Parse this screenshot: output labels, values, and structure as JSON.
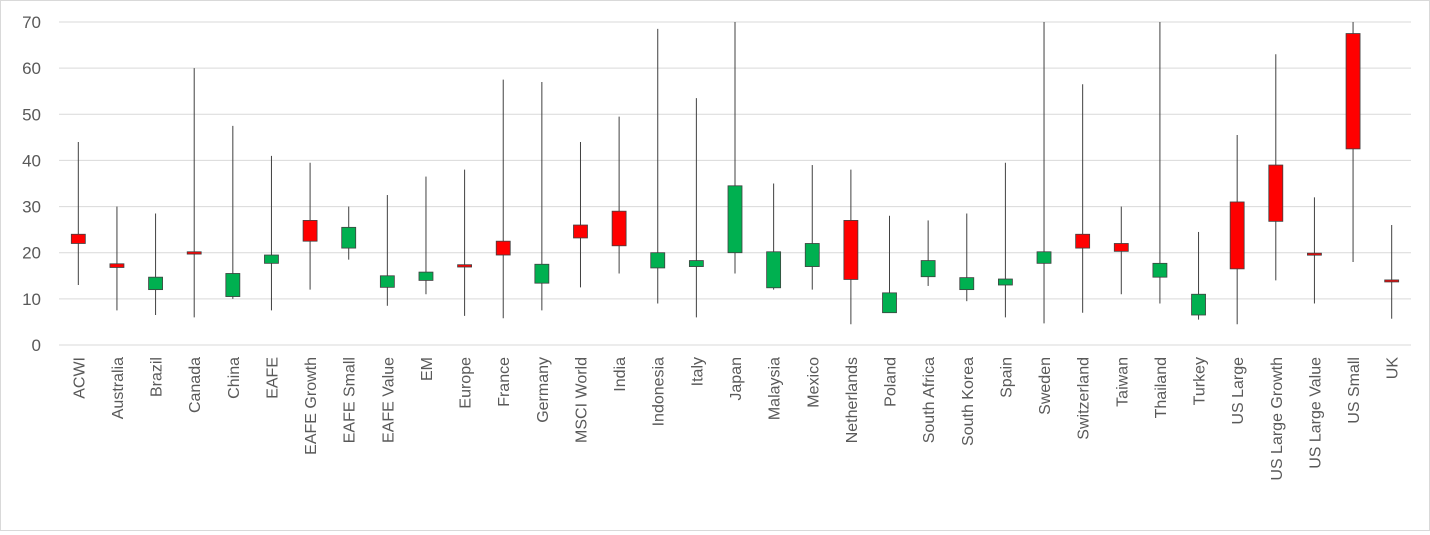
{
  "chart_data": {
    "type": "candlestick",
    "title": "",
    "xlabel": "",
    "ylabel": "",
    "ylim": [
      0,
      70
    ],
    "yticks": [
      0,
      10,
      20,
      30,
      40,
      50,
      60,
      70
    ],
    "grid": true,
    "legend": "none",
    "colors": {
      "up": "#00b050",
      "down": "#ff0000",
      "wick": "#404040",
      "grid": "#d9d9d9",
      "text": "#595959"
    },
    "categories": [
      "ACWI",
      "Australia",
      "Brazil",
      "Canada",
      "China",
      "EAFE",
      "EAFE Growth",
      "EAFE Small",
      "EAFE Value",
      "EM",
      "Europe",
      "France",
      "Germany",
      "MSCI World",
      "India",
      "Indonesia",
      "Italy",
      "Japan",
      "Malaysia",
      "Mexico",
      "Netherlands",
      "Poland",
      "South Africa",
      "South Korea",
      "Spain",
      "Sweden",
      "Switzerland",
      "Taiwan",
      "Thailand",
      "Turkey",
      "US Large",
      "US Large Growth",
      "US Large Value",
      "US Small",
      "UK"
    ],
    "open": [
      24.0,
      17.6,
      12.0,
      20.2,
      10.5,
      17.7,
      27.0,
      21.0,
      12.5,
      14.0,
      17.4,
      22.5,
      13.4,
      26.0,
      29.0,
      16.7,
      17.0,
      20.0,
      12.4,
      17.0,
      27.0,
      7.0,
      14.8,
      12.0,
      13.0,
      17.7,
      24.0,
      22.0,
      14.7,
      6.5,
      31.0,
      39.0,
      19.9,
      67.5,
      14.1
    ],
    "close": [
      22.0,
      16.8,
      14.7,
      19.7,
      15.5,
      19.5,
      22.5,
      25.5,
      15.0,
      15.8,
      16.9,
      19.5,
      17.5,
      23.2,
      21.5,
      20.0,
      18.3,
      34.5,
      20.2,
      22.0,
      14.2,
      11.3,
      18.3,
      14.6,
      14.3,
      20.2,
      21.0,
      20.3,
      17.7,
      11.0,
      16.5,
      26.8,
      19.5,
      42.5,
      13.8
    ],
    "high": [
      44.0,
      30.0,
      28.5,
      60.0,
      47.5,
      41.0,
      39.5,
      30.0,
      32.5,
      36.5,
      38.0,
      57.5,
      57.0,
      44.0,
      49.5,
      68.5,
      53.5,
      70.0,
      35.0,
      39.0,
      38.0,
      28.0,
      27.0,
      28.5,
      39.5,
      70.0,
      56.5,
      30.0,
      70.0,
      24.5,
      45.5,
      63.0,
      32.0,
      70.0,
      26.0
    ],
    "low": [
      13.0,
      7.5,
      6.5,
      6.0,
      10.0,
      7.5,
      12.0,
      18.5,
      8.5,
      11.0,
      6.3,
      5.8,
      7.5,
      12.5,
      15.5,
      9.0,
      6.0,
      15.5,
      12.0,
      12.0,
      4.5,
      7.0,
      12.8,
      9.5,
      6.0,
      4.7,
      7.0,
      11.0,
      9.0,
      5.5,
      4.5,
      14.0,
      9.0,
      18.0,
      5.7
    ]
  }
}
